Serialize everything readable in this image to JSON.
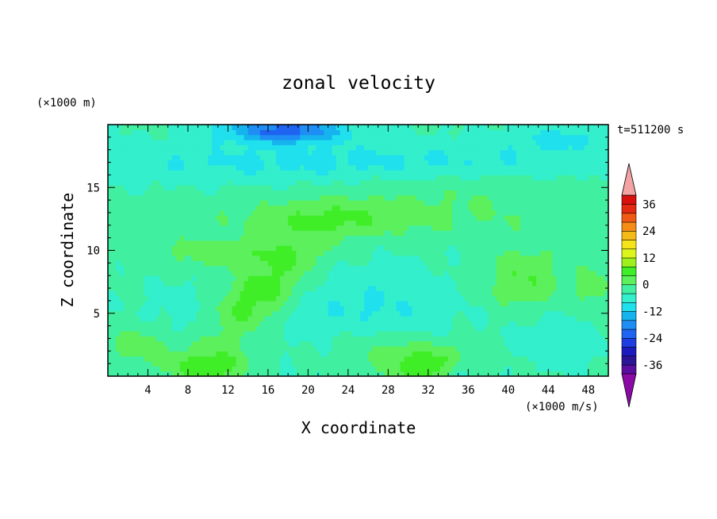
{
  "chart_data": {
    "type": "heatmap",
    "title": "zonal velocity",
    "xlabel": "X coordinate",
    "ylabel": "Z coordinate",
    "x_unit": "(×1000 m/s)",
    "y_unit": "(×1000 m)",
    "time_label": "t=511200 s",
    "xlim": [
      0,
      50
    ],
    "ylim": [
      0,
      20
    ],
    "xticks": [
      4,
      8,
      12,
      16,
      20,
      24,
      28,
      32,
      36,
      40,
      44,
      48
    ],
    "yticks": [
      5,
      10,
      15
    ],
    "colorbar": {
      "levels": [
        -40,
        -36,
        -32,
        -28,
        -24,
        -20,
        -16,
        -12,
        -8,
        -4,
        0,
        4,
        8,
        12,
        16,
        20,
        24,
        28,
        32,
        36,
        40
      ],
      "tick_labels": [
        36,
        24,
        12,
        0,
        -12,
        -24,
        -36
      ],
      "colors": [
        "#5a0ea0",
        "#2b1496",
        "#1c1cbe",
        "#1e3ee0",
        "#1f64f0",
        "#1e8ef5",
        "#16b4ef",
        "#20e0ee",
        "#33efcc",
        "#40efa0",
        "#5cf05c",
        "#40ee28",
        "#9ef01e",
        "#dcf51c",
        "#f5e41a",
        "#f5b918",
        "#f58d16",
        "#f05a14",
        "#e52a12",
        "#d8100e"
      ],
      "under_color": "#8b0aa5",
      "over_color": "#f3a3a3"
    },
    "field": {
      "grid": {
        "x": [
          0,
          50
        ],
        "z": [
          0,
          20
        ],
        "nx": 125,
        "nz": 50
      },
      "background_value": -3.5,
      "blobs": [
        {
          "x": 15,
          "z": 6.5,
          "sx": 6,
          "sz": 2.4,
          "amp": 10,
          "rot": -0.55
        },
        {
          "x": 12,
          "z": 9.8,
          "sx": 8,
          "sz": 1.2,
          "amp": 6,
          "rot": 0
        },
        {
          "x": 10,
          "z": 0.8,
          "sx": 4,
          "sz": 1.5,
          "amp": 10,
          "rot": 0
        },
        {
          "x": 32,
          "z": 0.8,
          "sx": 4.5,
          "sz": 1.5,
          "amp": 11,
          "rot": 0
        },
        {
          "x": 27,
          "z": 2.5,
          "sx": 6,
          "sz": 1.6,
          "amp": 5,
          "rot": 0
        },
        {
          "x": 41.5,
          "z": 7.8,
          "sx": 4,
          "sz": 2.5,
          "amp": 7.5,
          "rot": 0
        },
        {
          "x": 3,
          "z": 2.5,
          "sx": 3,
          "sz": 1.5,
          "amp": 6,
          "rot": 0
        },
        {
          "x": 48.5,
          "z": 7,
          "sx": 2,
          "sz": 2,
          "amp": 5,
          "rot": 0
        },
        {
          "x": 25,
          "z": 12.5,
          "sx": 20,
          "sz": 1.6,
          "amp": 4,
          "rot": 0
        },
        {
          "x": 22,
          "z": 12.5,
          "sx": 6,
          "sz": 1.6,
          "amp": 4,
          "rot": 0
        },
        {
          "x": 35,
          "z": 15,
          "sx": 15,
          "sz": 2,
          "amp": 3,
          "rot": 0
        },
        {
          "x": 26,
          "z": 5,
          "sx": 8,
          "sz": 3.5,
          "amp": -5,
          "rot": 0
        },
        {
          "x": 8,
          "z": 4.8,
          "sx": 4,
          "sz": 2.5,
          "amp": -2.5,
          "rot": 0
        },
        {
          "x": 45,
          "z": 3,
          "sx": 4,
          "sz": 2,
          "amp": -4,
          "rot": 0
        },
        {
          "x": 35,
          "z": 0.3,
          "sx": 1.5,
          "sz": 1,
          "amp": -8,
          "rot": 0
        },
        {
          "x": 25,
          "z": 17,
          "sx": 30,
          "sz": 1.6,
          "amp": -6,
          "rot": 0
        },
        {
          "x": 17.5,
          "z": 19.6,
          "sx": 6,
          "sz": 1,
          "amp": -18,
          "rot": 0
        },
        {
          "x": 45,
          "z": 19,
          "sx": 6,
          "sz": 1,
          "amp": -5,
          "rot": 0
        }
      ]
    }
  }
}
